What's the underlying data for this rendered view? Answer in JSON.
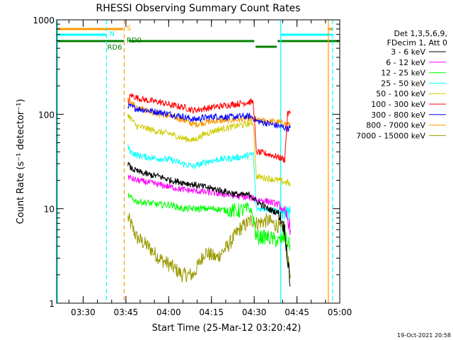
{
  "chart_data": {
    "type": "line",
    "title": "RHESSI Observing Summary Count Rates",
    "xlabel": "Start Time (25-Mar-12 03:20:42)",
    "ylabel": "Count Rate (s⁻¹ detector⁻¹)",
    "yscale": "log",
    "ylim": [
      1,
      1000
    ],
    "xlim_minutes": [
      0,
      99.3
    ],
    "yticks": [
      {
        "label": "1",
        "value": 1
      },
      {
        "label": "10",
        "value": 10
      },
      {
        "label": "100",
        "value": 100
      },
      {
        "label": "1000",
        "value": 1000
      }
    ],
    "xticks": [
      {
        "label": "03:30",
        "minute": 9.3
      },
      {
        "label": "03:45",
        "minute": 24.3
      },
      {
        "label": "04:00",
        "minute": 39.3
      },
      {
        "label": "04:15",
        "minute": 54.3
      },
      {
        "label": "04:30",
        "minute": 69.3
      },
      {
        "label": "04:45",
        "minute": 84.3
      },
      {
        "label": "05:00",
        "minute": 99.3
      }
    ],
    "legend": {
      "header": [
        "Det 1,3,5,6,9,",
        "FDecim 1, Att 0"
      ],
      "placement": "right"
    },
    "series": [
      {
        "name": "3 - 6 keV",
        "color": "#000000",
        "x": [
          25,
          26,
          28,
          32,
          36,
          40,
          44,
          48,
          52,
          56,
          60,
          64,
          68,
          69,
          70,
          74,
          78,
          80,
          81,
          82
        ],
        "values": [
          30,
          27,
          25,
          23,
          22,
          20,
          19,
          18,
          17,
          16,
          15,
          14,
          14,
          13,
          12,
          10,
          9,
          6,
          3,
          1.5
        ]
      },
      {
        "name": "6 - 12 keV",
        "color": "#ff00ff",
        "x": [
          25,
          26,
          28,
          32,
          36,
          40,
          44,
          48,
          52,
          56,
          60,
          64,
          68,
          69,
          70,
          74,
          78,
          80,
          81,
          82
        ],
        "values": [
          22,
          21,
          20,
          19,
          18,
          17,
          16,
          15.5,
          15,
          14.5,
          14,
          13.5,
          13,
          13,
          12.5,
          12,
          11,
          9,
          8,
          6
        ]
      },
      {
        "name": "12 - 25 keV",
        "color": "#00ff00",
        "x": [
          25,
          26,
          28,
          32,
          36,
          40,
          44,
          48,
          52,
          56,
          60,
          64,
          68,
          69,
          70,
          74,
          78,
          80,
          81,
          82
        ],
        "values": [
          14,
          13,
          12,
          11.5,
          11,
          11,
          10,
          10,
          10,
          10,
          9.5,
          9.5,
          10,
          8,
          5,
          5,
          4.5,
          5,
          4.5,
          4
        ]
      },
      {
        "name": "25 - 50 keV",
        "color": "#00ffff",
        "x": [
          25,
          26,
          28,
          32,
          36,
          40,
          44,
          48,
          52,
          56,
          60,
          64,
          68,
          69,
          70,
          74,
          78,
          80,
          81,
          82
        ],
        "values": [
          45,
          40,
          37,
          35,
          34,
          33,
          30,
          28,
          31,
          33,
          34,
          35,
          37,
          38,
          10,
          10,
          9.5,
          9,
          9,
          9
        ]
      },
      {
        "name": "50 - 100 keV",
        "color": "#cccc00",
        "x": [
          25,
          26,
          28,
          32,
          36,
          40,
          44,
          48,
          52,
          56,
          60,
          64,
          68,
          69,
          70,
          74,
          78,
          80,
          81,
          82
        ],
        "values": [
          100,
          90,
          75,
          70,
          65,
          62,
          56,
          53,
          62,
          68,
          72,
          76,
          80,
          82,
          22,
          21,
          20,
          19,
          19,
          18
        ]
      },
      {
        "name": "100 - 300 keV",
        "color": "#ff0000",
        "x": [
          25,
          26,
          28,
          32,
          36,
          40,
          44,
          48,
          52,
          56,
          60,
          64,
          68,
          69,
          70,
          74,
          78,
          80,
          81,
          82
        ],
        "values": [
          130,
          160,
          150,
          140,
          135,
          125,
          120,
          110,
          115,
          120,
          125,
          130,
          135,
          135,
          40,
          38,
          35,
          33,
          100,
          105
        ]
      },
      {
        "name": "300 - 800 keV",
        "color": "#0000ff",
        "x": [
          25,
          26,
          28,
          32,
          36,
          40,
          44,
          48,
          52,
          56,
          60,
          64,
          68,
          69,
          70,
          74,
          78,
          80,
          81,
          82
        ],
        "values": [
          125,
          120,
          115,
          110,
          105,
          100,
          95,
          88,
          92,
          95,
          93,
          95,
          95,
          92,
          85,
          80,
          75,
          72,
          70,
          72
        ]
      },
      {
        "name": "800 - 7000 keV",
        "color": "#ff9900",
        "x": [
          25,
          26,
          28,
          32,
          36,
          40,
          44,
          48,
          52,
          56,
          60,
          64,
          68,
          69,
          70,
          74,
          78,
          80,
          81,
          82
        ],
        "values": [
          140,
          135,
          120,
          110,
          100,
          95,
          88,
          78,
          82,
          85,
          86,
          88,
          90,
          88,
          86,
          85,
          82,
          80,
          78,
          78
        ]
      },
      {
        "name": "7000 - 15000 keV",
        "color": "#999900",
        "x": [
          25,
          26,
          28,
          32,
          36,
          40,
          44,
          48,
          52,
          56,
          60,
          64,
          68,
          69,
          70,
          74,
          78,
          80,
          81,
          82
        ],
        "values": [
          8,
          7,
          5,
          4,
          3,
          2.5,
          2,
          2,
          3.5,
          3,
          4,
          6,
          7.5,
          7.5,
          7,
          7.5,
          6.5,
          5,
          3,
          2
        ]
      }
    ],
    "state_bars": [
      {
        "label": "S",
        "color": "#ff9900",
        "segments": [
          [
            0,
            23.3
          ],
          [
            95.3,
            96.8
          ]
        ]
      },
      {
        "label": "N",
        "color": "#00ffff",
        "segments": [
          [
            0,
            17.5
          ],
          [
            78.5,
            96.8
          ]
        ]
      },
      {
        "label": "RD6",
        "color": "#008000",
        "segments": [
          [
            0,
            23.7
          ]
        ]
      },
      {
        "label": "RD0",
        "color": "#008000",
        "segments": [
          [
            25.3,
            69.3
          ],
          [
            77.5,
            99.3
          ]
        ]
      }
    ],
    "vlines": [
      {
        "minute": 0.3,
        "color": "#00ffff",
        "style": "solid"
      },
      {
        "minute": 17.5,
        "color": "#00ffff",
        "style": "dashed"
      },
      {
        "minute": 23.7,
        "color": "#ff9900",
        "style": "dashed"
      },
      {
        "minute": 78.6,
        "color": "#00ffff",
        "style": "solid"
      },
      {
        "minute": 95.3,
        "color": "#ff9900",
        "style": "solid"
      },
      {
        "minute": 96.8,
        "color": "#00ffff",
        "style": "dashed"
      }
    ],
    "timestamp": "19-Oct-2021 20:58"
  }
}
